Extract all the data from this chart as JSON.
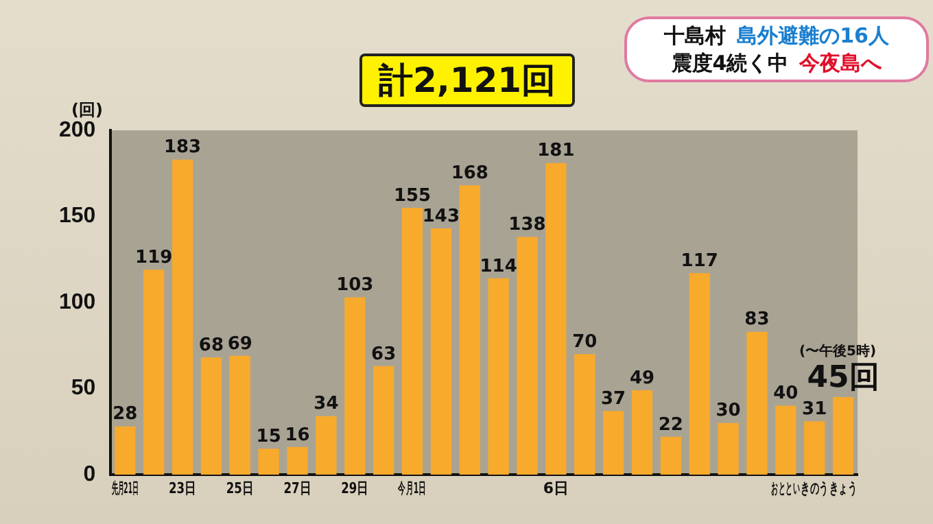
{
  "chart_data": {
    "type": "bar",
    "title": "計2,121回",
    "ylabel": "(回)",
    "categories": [
      "先月21日",
      null,
      "23日",
      null,
      "25日",
      null,
      "27日",
      null,
      "29日",
      null,
      "今月1日",
      null,
      null,
      null,
      null,
      "6日",
      null,
      null,
      null,
      null,
      null,
      null,
      null,
      "おととい",
      "きのう",
      "きょう"
    ],
    "values": [
      28,
      119,
      183,
      68,
      69,
      15,
      16,
      34,
      103,
      63,
      155,
      143,
      168,
      114,
      138,
      181,
      70,
      37,
      49,
      22,
      117,
      30,
      83,
      40,
      31,
      45
    ],
    "value_labels": [
      "28",
      "119",
      "183",
      "68",
      "69",
      "15",
      "16",
      "34",
      "103",
      "63",
      "155",
      "143",
      "168",
      "114",
      "138",
      "181",
      "70",
      "37",
      "49",
      "22",
      "117",
      "30",
      "83",
      "40",
      "31",
      "45回"
    ],
    "color": "#f8aa2c",
    "ylim": [
      0,
      200
    ],
    "yticks": [
      0,
      50,
      100,
      150,
      200
    ],
    "grid": false,
    "legend": false,
    "annotations": [
      "十島村",
      "島外避難の16人",
      "震度4続く中",
      "今夜島へ",
      {
        "text": "(〜午後5時)",
        "x": "きょう",
        "y": 45
      }
    ]
  }
}
